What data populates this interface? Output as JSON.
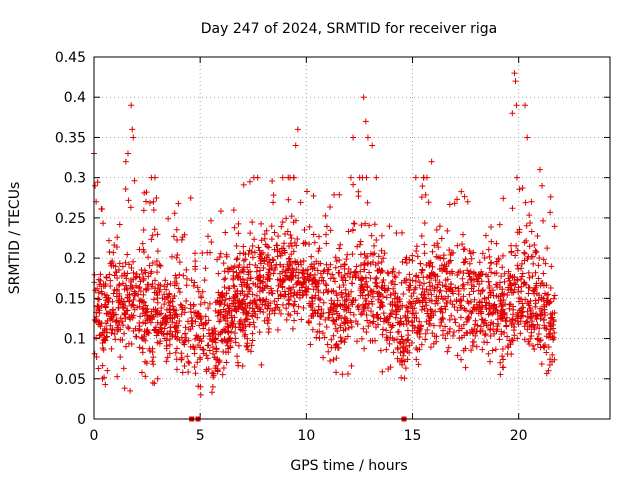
{
  "chart_data": {
    "type": "scatter",
    "title": "Day 247 of 2024, SRMTID for receiver riga",
    "xlabel": "GPS time / hours",
    "ylabel": "SRMTID / TECUs",
    "xlim": [
      0,
      24.3
    ],
    "ylim": [
      0,
      0.45
    ],
    "xticks": [
      0,
      5,
      10,
      15,
      20
    ],
    "xtick_labels": [
      "0",
      "5",
      "10",
      "15",
      "20"
    ],
    "yticks": [
      0,
      0.05,
      0.1,
      0.15,
      0.2,
      0.25,
      0.3,
      0.35,
      0.4,
      0.45
    ],
    "ytick_labels": [
      "0",
      "0.05",
      "0.1",
      "0.15",
      "0.2",
      "0.25",
      "0.3",
      "0.35",
      "0.4",
      "0.45"
    ],
    "grid": true,
    "marker": "+",
    "color": "#e00000",
    "series_name": "SRMTID",
    "zero_markers_x": [
      4.6,
      4.9,
      14.6
    ],
    "x_range_hours": [
      0,
      21.7
    ],
    "baseline_profile": [
      [
        0.0,
        0.13
      ],
      [
        1.0,
        0.13
      ],
      [
        2.0,
        0.14
      ],
      [
        3.0,
        0.13
      ],
      [
        4.0,
        0.12
      ],
      [
        5.0,
        0.11
      ],
      [
        5.6,
        0.1
      ],
      [
        6.5,
        0.14
      ],
      [
        8.0,
        0.17
      ],
      [
        9.5,
        0.18
      ],
      [
        10.5,
        0.15
      ],
      [
        11.5,
        0.13
      ],
      [
        12.5,
        0.16
      ],
      [
        13.5,
        0.15
      ],
      [
        14.5,
        0.12
      ],
      [
        15.5,
        0.15
      ],
      [
        16.5,
        0.16
      ],
      [
        17.5,
        0.15
      ],
      [
        18.5,
        0.14
      ],
      [
        19.5,
        0.13
      ],
      [
        20.0,
        0.16
      ],
      [
        21.0,
        0.14
      ],
      [
        21.7,
        0.12
      ]
    ],
    "notable_points": [
      [
        0.0,
        0.33
      ],
      [
        0.05,
        0.29
      ],
      [
        0.1,
        0.27
      ],
      [
        1.75,
        0.39
      ],
      [
        1.8,
        0.36
      ],
      [
        1.85,
        0.35
      ],
      [
        1.5,
        0.32
      ],
      [
        1.6,
        0.33
      ],
      [
        2.7,
        0.3
      ],
      [
        2.8,
        0.27
      ],
      [
        9.6,
        0.36
      ],
      [
        9.5,
        0.34
      ],
      [
        9.4,
        0.3
      ],
      [
        12.7,
        0.4
      ],
      [
        12.8,
        0.37
      ],
      [
        12.9,
        0.35
      ],
      [
        12.2,
        0.35
      ],
      [
        13.1,
        0.34
      ],
      [
        12.1,
        0.3
      ],
      [
        15.9,
        0.32
      ],
      [
        17.6,
        0.27
      ],
      [
        19.8,
        0.43
      ],
      [
        19.85,
        0.42
      ],
      [
        19.9,
        0.39
      ],
      [
        19.7,
        0.38
      ],
      [
        20.3,
        0.39
      ],
      [
        20.4,
        0.35
      ],
      [
        21.0,
        0.31
      ],
      [
        21.1,
        0.29
      ],
      [
        20.6,
        0.27
      ],
      [
        1.7,
        0.035
      ],
      [
        5.6,
        0.04
      ],
      [
        11.4,
        0.058
      ],
      [
        21.4,
        0.06
      ],
      [
        3.0,
        0.05
      ],
      [
        0.4,
        0.05
      ]
    ]
  }
}
